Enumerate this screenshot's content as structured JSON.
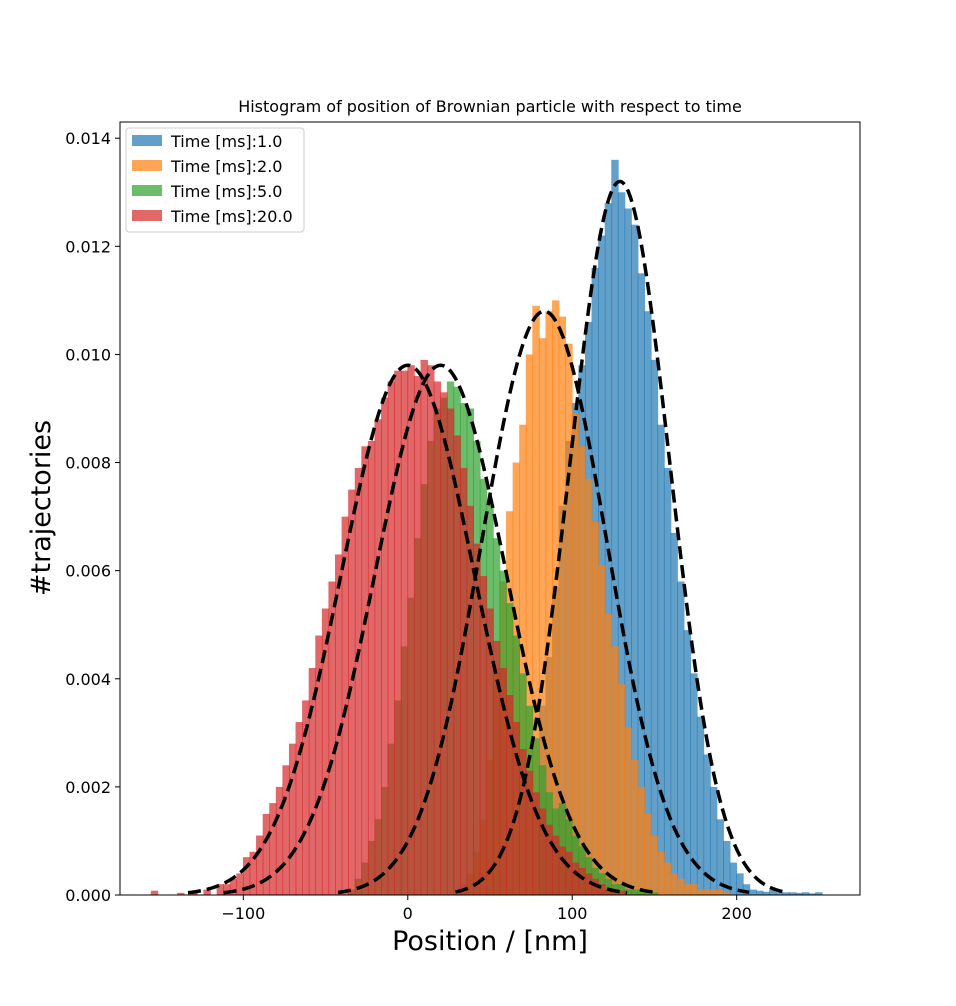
{
  "chart_data": {
    "type": "bar",
    "title": "Histogram of position of Brownian particle with respect to time",
    "xlabel": "Position / [nm]",
    "ylabel": "#trajectories",
    "xlim": [
      -175,
      275
    ],
    "ylim": [
      0,
      0.0143
    ],
    "xticks": [
      -100,
      0,
      100,
      200
    ],
    "xtick_labels": [
      "−100",
      "0",
      "100",
      "200"
    ],
    "yticks": [
      0.0,
      0.002,
      0.004,
      0.006,
      0.008,
      0.01,
      0.012,
      0.014
    ],
    "ytick_labels": [
      "0.000",
      "0.002",
      "0.004",
      "0.006",
      "0.008",
      "0.010",
      "0.012",
      "0.014"
    ],
    "grid": false,
    "legend_position": "top-left",
    "bar_width_nm": 4.5,
    "colors": {
      "series_1": "#1f77b4",
      "series_2": "#ff7f0e",
      "series_3": "#2ca02c",
      "series_4": "#d62728",
      "fit_curve": "#000000"
    },
    "bar_opacity": 0.7,
    "series": [
      {
        "name": "Time [ms]:1.0",
        "x": [
          82,
          86,
          90,
          94,
          98,
          102,
          106,
          110,
          114,
          118,
          122,
          126,
          130,
          134,
          138,
          142,
          146,
          150,
          154,
          158,
          162,
          166,
          170,
          174,
          178,
          182,
          186,
          190,
          194,
          198,
          202,
          206,
          210,
          214,
          218,
          222,
          226,
          230,
          234,
          238,
          242,
          246,
          250
        ],
        "values": [
          0.0035,
          0.0044,
          0.0057,
          0.0072,
          0.0084,
          0.0091,
          0.0098,
          0.0106,
          0.0116,
          0.0122,
          0.0128,
          0.0136,
          0.013,
          0.0127,
          0.0124,
          0.0115,
          0.0108,
          0.0099,
          0.0087,
          0.0079,
          0.0067,
          0.0058,
          0.0049,
          0.0041,
          0.0033,
          0.0026,
          0.002,
          0.0014,
          0.001,
          0.0006,
          0.0004,
          0.0002,
          0.0001,
          8e-05,
          6e-05,
          0.0001,
          5e-05,
          5e-05,
          5e-05,
          4e-05,
          5e-05,
          3e-05,
          5e-05
        ],
        "fit": {
          "mean": 129,
          "std": 30.3,
          "peak": 0.0132
        }
      },
      {
        "name": "Time [ms]:2.0",
        "x": [
          34,
          38,
          42,
          46,
          50,
          54,
          58,
          62,
          66,
          70,
          74,
          78,
          82,
          86,
          90,
          94,
          98,
          102,
          106,
          110,
          114,
          118,
          122,
          126,
          130,
          134,
          138,
          142,
          146,
          150,
          154,
          158,
          162,
          166,
          170,
          174,
          178,
          182,
          186,
          190,
          194
        ],
        "values": [
          0.0002,
          0.0004,
          0.0008,
          0.0014,
          0.0025,
          0.0042,
          0.0058,
          0.0071,
          0.008,
          0.0087,
          0.01,
          0.0109,
          0.0103,
          0.0108,
          0.011,
          0.0107,
          0.0102,
          0.0089,
          0.0083,
          0.0077,
          0.0069,
          0.0061,
          0.0052,
          0.0046,
          0.0039,
          0.0031,
          0.0025,
          0.002,
          0.0015,
          0.0011,
          0.0008,
          0.0006,
          0.0004,
          0.0003,
          0.0002,
          0.0002,
          0.0001,
          0.0001,
          0.0001,
          0.0001,
          5e-05
        ],
        "fit": {
          "mean": 83,
          "std": 38,
          "peak": 0.0108
        }
      },
      {
        "name": "Time [ms]:5.0",
        "x": [
          -34,
          -30,
          -26,
          -22,
          -18,
          -14,
          -10,
          -6,
          -2,
          2,
          6,
          10,
          14,
          18,
          22,
          26,
          30,
          34,
          38,
          42,
          46,
          50,
          54,
          58,
          62,
          66,
          70,
          74,
          78,
          82,
          86,
          90,
          94,
          98,
          102,
          106,
          110,
          114,
          118,
          122,
          126,
          130,
          134,
          138,
          142,
          146,
          150
        ],
        "values": [
          0.0001,
          0.0003,
          0.0006,
          0.001,
          0.0014,
          0.002,
          0.0028,
          0.0036,
          0.0046,
          0.0055,
          0.0066,
          0.0076,
          0.0084,
          0.009,
          0.0092,
          0.0095,
          0.0094,
          0.0091,
          0.009,
          0.0084,
          0.0077,
          0.0072,
          0.0066,
          0.006,
          0.0054,
          0.0048,
          0.0041,
          0.0035,
          0.0029,
          0.0024,
          0.0019,
          0.0016,
          0.0017,
          0.0014,
          0.0011,
          0.0009,
          0.0007,
          0.0005,
          0.0004,
          0.0003,
          0.0002,
          0.0002,
          0.0001,
          0.0001,
          0.0001,
          0.0001,
          5e-05
        ],
        "fit": {
          "mean": 20,
          "std": 40,
          "peak": 0.0098
        }
      },
      {
        "name": "Time [ms]:20.0",
        "x": [
          -154,
          -138,
          -130,
          -122,
          -114,
          -110,
          -106,
          -102,
          -98,
          -94,
          -90,
          -86,
          -82,
          -78,
          -74,
          -70,
          -66,
          -62,
          -58,
          -54,
          -50,
          -46,
          -42,
          -38,
          -34,
          -30,
          -26,
          -22,
          -18,
          -14,
          -10,
          -6,
          -2,
          2,
          6,
          10,
          14,
          18,
          22,
          26,
          30,
          34,
          38,
          42,
          46,
          50,
          54,
          58,
          62,
          66,
          70,
          74,
          78,
          82,
          86,
          90,
          94,
          98,
          102,
          106,
          110,
          114,
          118,
          122,
          126,
          130
        ],
        "values": [
          8e-05,
          4e-05,
          5e-05,
          0.0001,
          0.0002,
          0.0002,
          0.0003,
          0.0004,
          0.0007,
          0.0008,
          0.0011,
          0.0015,
          0.0017,
          0.002,
          0.0024,
          0.0028,
          0.0032,
          0.0036,
          0.0042,
          0.0048,
          0.0053,
          0.0058,
          0.0063,
          0.007,
          0.0075,
          0.0079,
          0.0083,
          0.0084,
          0.0088,
          0.0092,
          0.0095,
          0.0097,
          0.0097,
          0.0098,
          0.0096,
          0.0099,
          0.0098,
          0.0095,
          0.0093,
          0.009,
          0.0085,
          0.0079,
          0.0072,
          0.0065,
          0.0059,
          0.0053,
          0.0047,
          0.0042,
          0.0037,
          0.0032,
          0.0027,
          0.0023,
          0.0019,
          0.0016,
          0.0013,
          0.0011,
          0.0009,
          0.0008,
          0.0006,
          0.0005,
          0.0004,
          0.0003,
          0.0002,
          0.0001,
          0.0001,
          8e-05
        ],
        "fit": {
          "mean": 0,
          "std": 40.5,
          "peak": 0.0098
        }
      }
    ]
  }
}
